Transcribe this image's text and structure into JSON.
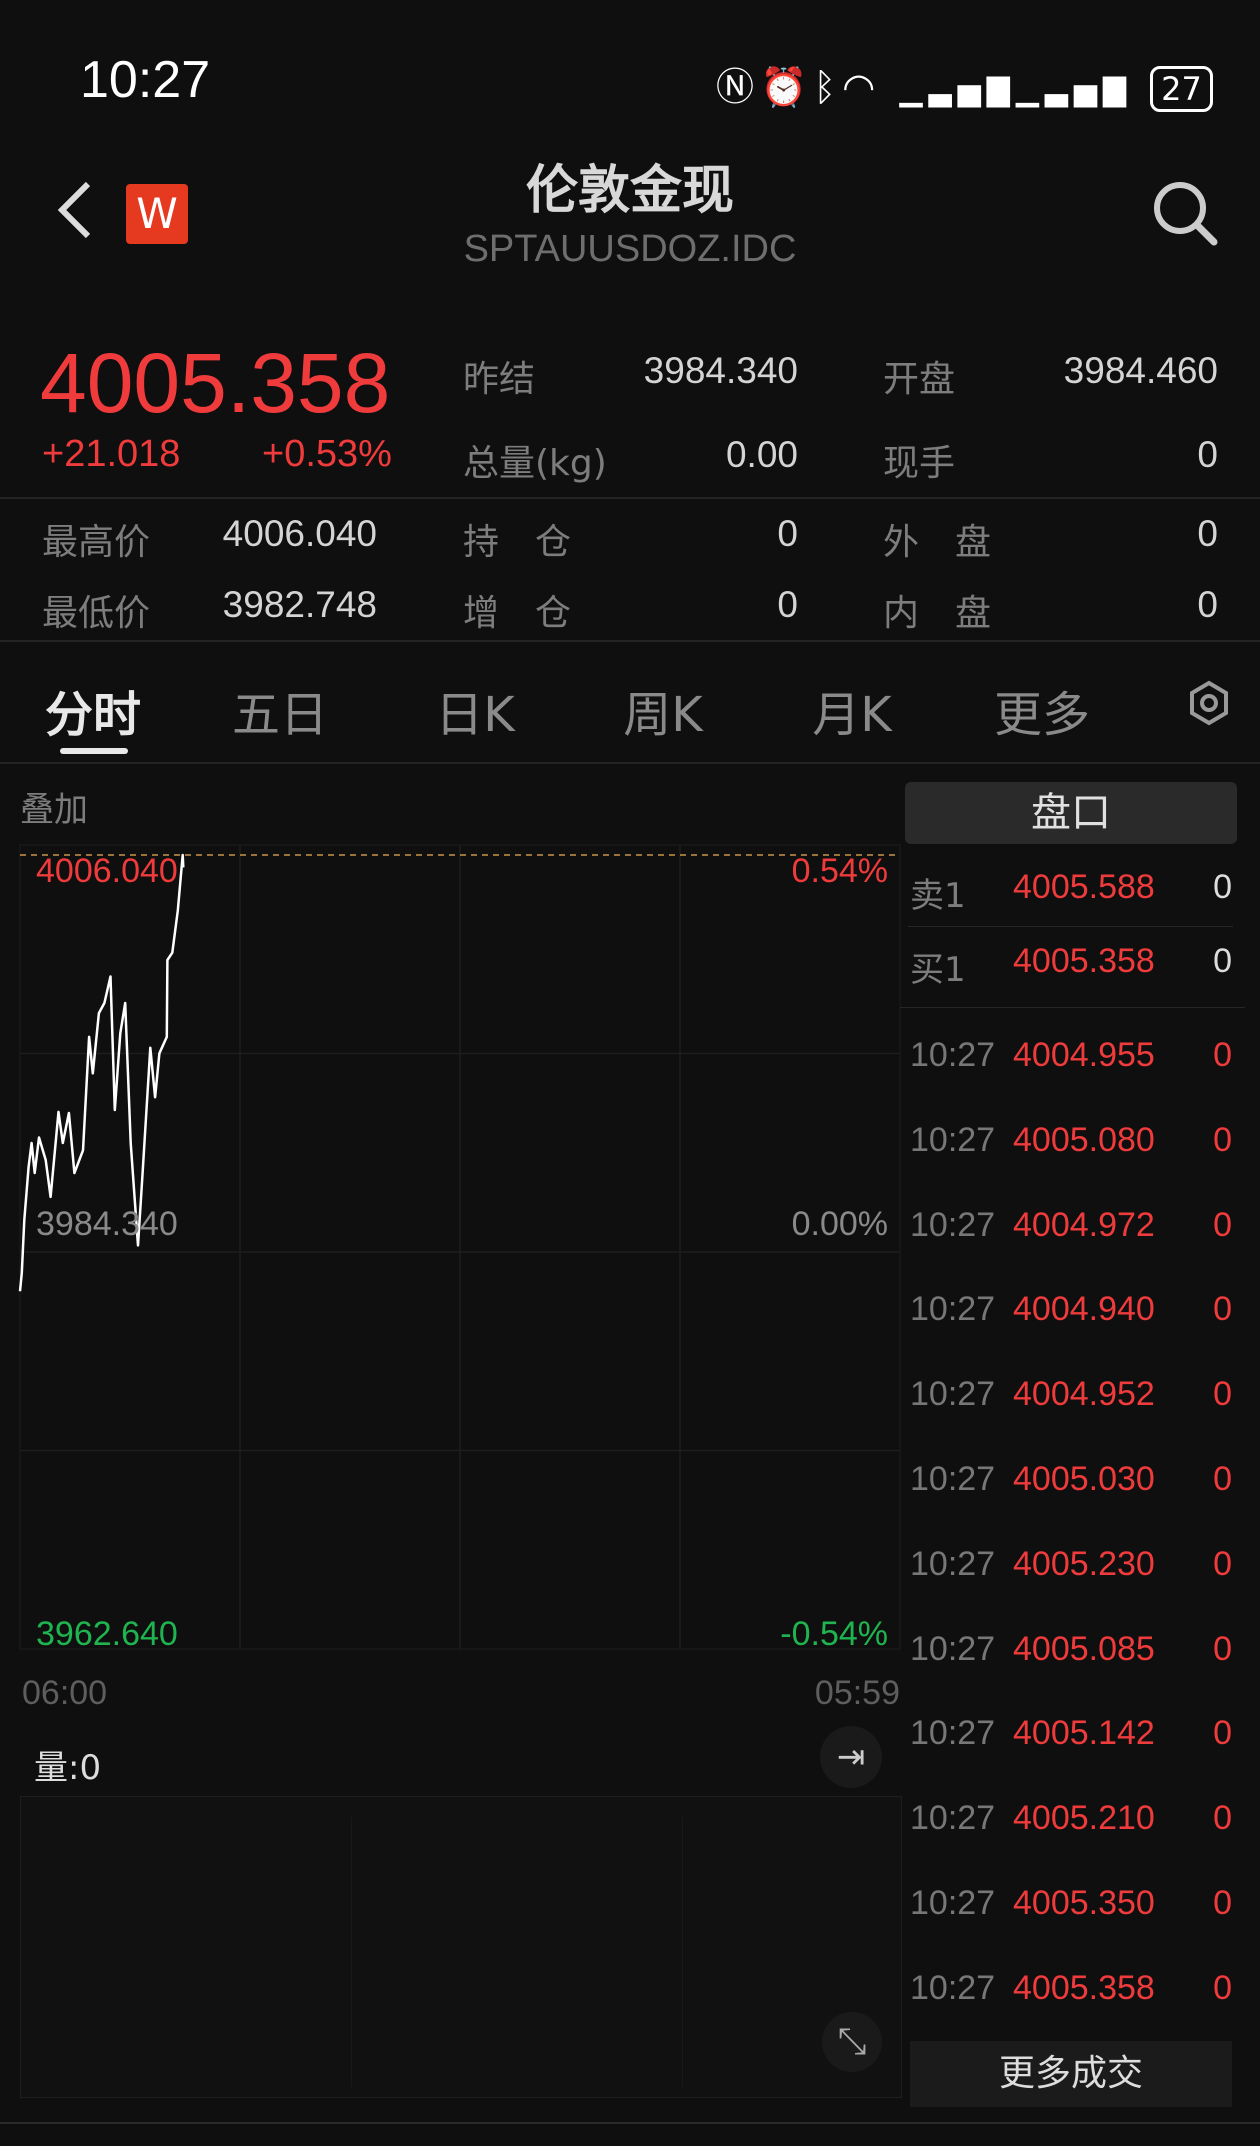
{
  "status_bar": {
    "time": "10:27",
    "battery": "27",
    "icons": [
      "nfc-icon",
      "alarm-icon",
      "bluetooth-icon",
      "wifi-icon",
      "signal-icon",
      "signal-icon",
      "battery-icon"
    ]
  },
  "header": {
    "title": "伦敦金现",
    "subtitle": "SPTAUUSDOZ.IDC",
    "logo_letter": "W",
    "logo_color": "#e53a1f"
  },
  "quote": {
    "price": "4005.358",
    "change": "+21.018",
    "change_pct": "+0.53%",
    "stats": [
      {
        "label": "昨结",
        "value": "3984.340"
      },
      {
        "label": "开盘",
        "value": "3984.460"
      },
      {
        "label": "总量(kg)",
        "value": "0.00"
      },
      {
        "label": "现手",
        "value": "0"
      },
      {
        "label": "最高价",
        "value": "4006.040"
      },
      {
        "label": "持　仓",
        "value": "0"
      },
      {
        "label": "外　盘",
        "value": "0"
      },
      {
        "label": "最低价",
        "value": "3982.748"
      },
      {
        "label": "增　仓",
        "value": "0"
      },
      {
        "label": "内　盘",
        "value": "0"
      }
    ]
  },
  "tabs": [
    {
      "label": "分时",
      "active": true
    },
    {
      "label": "五日"
    },
    {
      "label": "日K"
    },
    {
      "label": "周K"
    },
    {
      "label": "月K"
    },
    {
      "label": "更多"
    }
  ],
  "overlay_label": "叠加",
  "volume_label": "量:0",
  "colors": {
    "up": "#ef3b3b",
    "down": "#1fb44f",
    "background": "#0f0f0f"
  },
  "chart_data": {
    "type": "line",
    "ylim": [
      3962.64,
      4006.04
    ],
    "y_labels": {
      "top": "4006.040",
      "mid": "3984.340",
      "bottom": "3962.640"
    },
    "pct_labels": {
      "top": "0.54%",
      "mid": "0.00%",
      "bottom": "-0.54%"
    },
    "x_labels": [
      "06:00",
      "05:59"
    ],
    "high_line": 4006.04,
    "grid": true,
    "x": [
      "06:00",
      "06:03",
      "06:07",
      "06:14",
      "06:19",
      "06:24",
      "06:31",
      "06:42",
      "06:50",
      "07:03",
      "07:10",
      "07:20",
      "07:29",
      "07:43",
      "07:53",
      "07:59",
      "08:09",
      "08:18",
      "08:28",
      "08:35",
      "08:44",
      "08:52",
      "09:01",
      "09:13",
      "09:20",
      "09:33",
      "09:41",
      "09:48",
      "10:00",
      "10:01",
      "10:09",
      "10:18",
      "10:26",
      "10:27"
    ],
    "values": [
      3982.2,
      3983.19,
      3986.09,
      3988.99,
      3990.3,
      3988.66,
      3990.6,
      3989.37,
      3987.35,
      3992.0,
      3990.3,
      3991.94,
      3988.66,
      3989.9,
      3996.1,
      3994.1,
      3997.4,
      3997.95,
      3999.4,
      3992.1,
      3996.3,
      3997.95,
      3990.3,
      3984.7,
      3988.4,
      3995.5,
      3992.8,
      3995.2,
      3996.1,
      4000.3,
      4000.7,
      4003.0,
      4006.04,
      4005.36
    ]
  },
  "order_book": {
    "title": "盘口",
    "asks": [
      {
        "label": "卖1",
        "price": "4005.588",
        "vol": "0"
      }
    ],
    "bids": [
      {
        "label": "买1",
        "price": "4005.358",
        "vol": "0"
      }
    ]
  },
  "trades": [
    {
      "time": "10:27",
      "price": "4004.955",
      "vol": "0"
    },
    {
      "time": "10:27",
      "price": "4005.080",
      "vol": "0"
    },
    {
      "time": "10:27",
      "price": "4004.972",
      "vol": "0"
    },
    {
      "time": "10:27",
      "price": "4004.940",
      "vol": "0"
    },
    {
      "time": "10:27",
      "price": "4004.952",
      "vol": "0"
    },
    {
      "time": "10:27",
      "price": "4005.030",
      "vol": "0"
    },
    {
      "time": "10:27",
      "price": "4005.230",
      "vol": "0"
    },
    {
      "time": "10:27",
      "price": "4005.085",
      "vol": "0"
    },
    {
      "time": "10:27",
      "price": "4005.142",
      "vol": "0"
    },
    {
      "time": "10:27",
      "price": "4005.210",
      "vol": "0"
    },
    {
      "time": "10:27",
      "price": "4005.350",
      "vol": "0"
    },
    {
      "time": "10:27",
      "price": "4005.358",
      "vol": "0"
    }
  ],
  "more_trades_label": "更多成交"
}
